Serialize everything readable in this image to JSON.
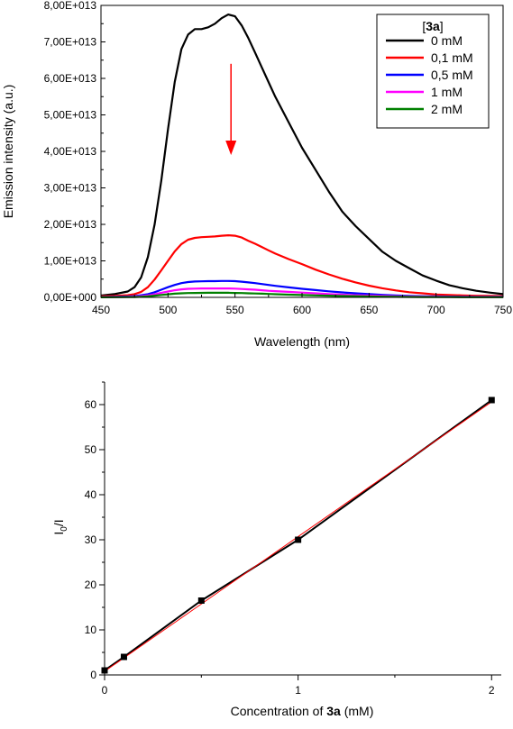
{
  "chart_data": [
    {
      "type": "line",
      "xlabel": "Wavelength (nm)",
      "ylabel": "Emission intensity (a.u.)",
      "xlim": [
        450,
        750
      ],
      "ylim": [
        0,
        80000000000000.0
      ],
      "xticks": [
        450,
        500,
        550,
        600,
        650,
        700,
        750
      ],
      "xtick_labels": [
        "450",
        "500",
        "550",
        "600",
        "650",
        "700",
        "750"
      ],
      "yticks": [
        0,
        10000000000000.0,
        20000000000000.0,
        30000000000000.0,
        40000000000000.0,
        50000000000000.0,
        60000000000000.0,
        70000000000000.0,
        80000000000000.0
      ],
      "ytick_labels": [
        "0,00E+000",
        "1,00E+013",
        "2,00E+013",
        "3,00E+013",
        "4,00E+013",
        "5,00E+013",
        "6,00E+013",
        "7,00E+013",
        "8,00E+013"
      ],
      "legend": {
        "title_prefix": "[",
        "title_bold": "3a",
        "title_suffix": "]",
        "placement": "top-right"
      },
      "annotation": {
        "type": "arrow",
        "direction": "down",
        "color": "#ff0000",
        "x": 547,
        "y_from": 64000000000000.0,
        "y_to": 39000000000000.0
      },
      "x": [
        450,
        460,
        470,
        475,
        480,
        485,
        490,
        495,
        500,
        505,
        510,
        515,
        520,
        525,
        530,
        535,
        540,
        545,
        550,
        555,
        560,
        565,
        570,
        575,
        580,
        590,
        600,
        610,
        620,
        630,
        640,
        650,
        660,
        670,
        680,
        690,
        700,
        710,
        720,
        730,
        740,
        750
      ],
      "series": [
        {
          "name": "0 mM",
          "color": "#000000",
          "values": [
            500000000000.0,
            900000000000.0,
            1600000000000.0,
            2800000000000.0,
            5500000000000.0,
            11000000000000.0,
            20000000000000.0,
            32000000000000.0,
            46000000000000.0,
            59000000000000.0,
            68000000000000.0,
            72000000000000.0,
            73500000000000.0,
            73500000000000.0,
            74000000000000.0,
            75000000000000.0,
            76500000000000.0,
            77500000000000.0,
            77000000000000.0,
            74500000000000.0,
            71000000000000.0,
            67000000000000.0,
            63000000000000.0,
            59000000000000.0,
            55000000000000.0,
            48000000000000.0,
            41000000000000.0,
            35000000000000.0,
            29000000000000.0,
            23500000000000.0,
            19500000000000.0,
            16000000000000.0,
            12500000000000.0,
            10000000000000.0,
            8000000000000.0,
            6000000000000.0,
            4600000000000.0,
            3300000000000.0,
            2500000000000.0,
            1800000000000.0,
            1300000000000.0,
            900000000000.0
          ]
        },
        {
          "name": "0,1 mM",
          "color": "#ff0000",
          "values": [
            300000000000.0,
            400000000000.0,
            600000000000.0,
            900000000000.0,
            1500000000000.0,
            2800000000000.0,
            4900000000000.0,
            7400000000000.0,
            10000000000000.0,
            12600000000000.0,
            14600000000000.0,
            15800000000000.0,
            16300000000000.0,
            16500000000000.0,
            16600000000000.0,
            16700000000000.0,
            16900000000000.0,
            17000000000000.0,
            16900000000000.0,
            16400000000000.0,
            15500000000000.0,
            14700000000000.0,
            13800000000000.0,
            12900000000000.0,
            12000000000000.0,
            10500000000000.0,
            9100000000000.0,
            7600000000000.0,
            6300000000000.0,
            5100000000000.0,
            4100000000000.0,
            3200000000000.0,
            2500000000000.0,
            1900000000000.0,
            1400000000000.0,
            1100000000000.0,
            800000000000.0,
            650000000000.0,
            550000000000.0,
            450000000000.0,
            400000000000.0,
            350000000000.0
          ]
        },
        {
          "name": "0,5 mM",
          "color": "#0000ff",
          "values": [
            100000000000.0,
            150000000000.0,
            250000000000.0,
            350000000000.0,
            600000000000.0,
            900000000000.0,
            1400000000000.0,
            2100000000000.0,
            2800000000000.0,
            3400000000000.0,
            3900000000000.0,
            4200000000000.0,
            4350000000000.0,
            4400000000000.0,
            4450000000000.0,
            4450000000000.0,
            4500000000000.0,
            4500000000000.0,
            4450000000000.0,
            4300000000000.0,
            4100000000000.0,
            3900000000000.0,
            3650000000000.0,
            3400000000000.0,
            3150000000000.0,
            2750000000000.0,
            2350000000000.0,
            2000000000000.0,
            1650000000000.0,
            1350000000000.0,
            1100000000000.0,
            900000000000.0,
            700000000000.0,
            550000000000.0,
            400000000000.0,
            320000000000.0,
            260000000000.0,
            220000000000.0,
            190000000000.0,
            170000000000.0,
            150000000000.0,
            140000000000.0
          ]
        },
        {
          "name": "1 mM",
          "color": "#ff00ff",
          "values": [
            50000000000.0,
            80000000000.0,
            130000000000.0,
            200000000000.0,
            350000000000.0,
            550000000000.0,
            850000000000.0,
            1250000000000.0,
            1600000000000.0,
            1950000000000.0,
            2200000000000.0,
            2350000000000.0,
            2400000000000.0,
            2450000000000.0,
            2450000000000.0,
            2450000000000.0,
            2450000000000.0,
            2450000000000.0,
            2400000000000.0,
            2300000000000.0,
            2200000000000.0,
            2100000000000.0,
            1950000000000.0,
            1800000000000.0,
            1700000000000.0,
            1500000000000.0,
            1300000000000.0,
            1100000000000.0,
            900000000000.0,
            750000000000.0,
            600000000000.0,
            500000000000.0,
            400000000000.0,
            320000000000.0,
            250000000000.0,
            200000000000.0,
            160000000000.0,
            130000000000.0,
            110000000000.0,
            100000000000.0,
            90000000000.0,
            80000000000.0
          ]
        },
        {
          "name": "2 mM",
          "color": "#008000",
          "values": [
            30000000000.0,
            40000000000.0,
            70000000000.0,
            100000000000.0,
            180000000000.0,
            300000000000.0,
            460000000000.0,
            660000000000.0,
            850000000000.0,
            1000000000000.0,
            1100000000000.0,
            1180000000000.0,
            1220000000000.0,
            1240000000000.0,
            1250000000000.0,
            1250000000000.0,
            1250000000000.0,
            1250000000000.0,
            1220000000000.0,
            1180000000000.0,
            1120000000000.0,
            1060000000000.0,
            1000000000000.0,
            930000000000.0,
            860000000000.0,
            750000000000.0,
            650000000000.0,
            550000000000.0,
            460000000000.0,
            380000000000.0,
            310000000000.0,
            250000000000.0,
            200000000000.0,
            160000000000.0,
            130000000000.0,
            100000000000.0,
            80000000000.0,
            70000000000.0,
            60000000000.0,
            50000000000.0,
            50000000000.0,
            40000000000.0
          ]
        }
      ]
    },
    {
      "type": "scatter",
      "xlabel_prefix": "Concentration of ",
      "xlabel_bold": "3a",
      "xlabel_suffix": " (mM)",
      "ylabel_main": "I",
      "ylabel_sub": "0",
      "ylabel_tail": "/I",
      "xlim": [
        0,
        2.05
      ],
      "ylim": [
        0,
        65
      ],
      "xticks": [
        0,
        1,
        2
      ],
      "xtick_labels": [
        "0",
        "1",
        "2"
      ],
      "yticks": [
        0,
        10,
        20,
        30,
        40,
        50,
        60
      ],
      "ytick_labels": [
        "0",
        "10",
        "20",
        "30",
        "40",
        "50",
        "60"
      ],
      "x": [
        0,
        0.1,
        0.5,
        1,
        2
      ],
      "series": [
        {
          "values": [
            1,
            4,
            16.5,
            30,
            61
          ],
          "color": "#000000",
          "marker": "square",
          "line": true
        }
      ],
      "fit_line": {
        "color": "#ff0000",
        "x": [
          0,
          2
        ],
        "y": [
          0.8,
          60.6
        ]
      }
    }
  ]
}
